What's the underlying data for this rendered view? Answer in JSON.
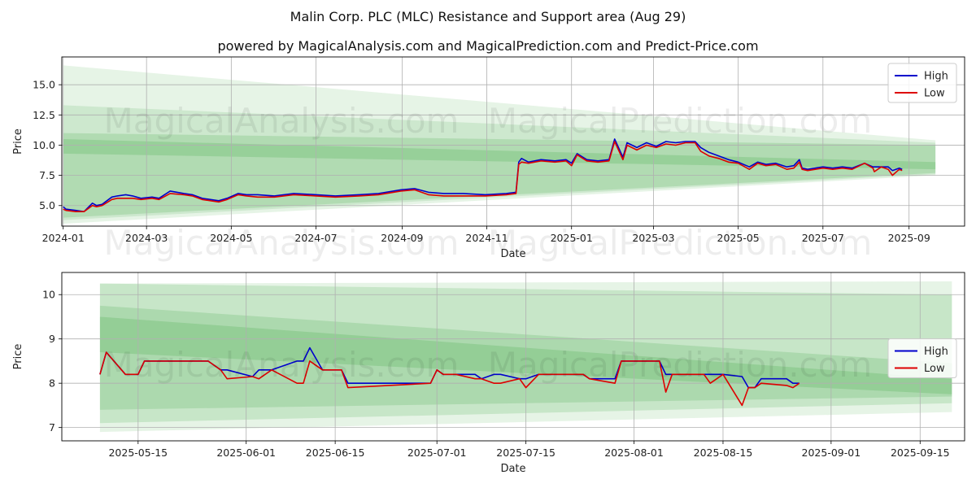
{
  "title": "Malin Corp. PLC (MLC) Resistance and Support area (Aug 29)",
  "subtitle": "powered by MagicalAnalysis.com and MagicalPrediction.com and Predict-Price.com",
  "watermarks": [
    "MagicalAnalysis.com",
    "MagicalPrediction.com"
  ],
  "colors": {
    "high": "#0000cc",
    "low": "#dd0000",
    "band": "#4caf50",
    "grid": "#b0b0b0"
  },
  "chart_data": [
    {
      "type": "line",
      "xlabel": "Date",
      "ylabel": "Price",
      "xlim": [
        "2023-12-31",
        "2025-10-11"
      ],
      "ylim": [
        3.3,
        17.3
      ],
      "xticks": [
        "2024-01-01",
        "2024-03-01",
        "2024-05-01",
        "2024-07-01",
        "2024-09-01",
        "2024-11-01",
        "2025-01-01",
        "2025-03-01",
        "2025-05-01",
        "2025-07-01",
        "2025-09-01"
      ],
      "xtick_labels": [
        "2024-01",
        "2024-03",
        "2024-05",
        "2024-07",
        "2024-09",
        "2024-11",
        "2025-01",
        "2025-03",
        "2025-05",
        "2025-07",
        "2025-09"
      ],
      "yticks": [
        5.0,
        7.5,
        10.0,
        12.5,
        15.0
      ],
      "ytick_labels": [
        "5.0",
        "7.5",
        "10.0",
        "12.5",
        "15.0"
      ],
      "grid": true,
      "legend": "top-right",
      "bands": [
        {
          "x": [
            "2024-01-01",
            "2025-09-20"
          ],
          "upper": [
            16.6,
            10.4
          ],
          "lower": [
            3.5,
            7.5
          ],
          "opacity": 0.14
        },
        {
          "x": [
            "2024-01-01",
            "2025-09-20"
          ],
          "upper": [
            13.3,
            10.2
          ],
          "lower": [
            3.8,
            7.6
          ],
          "opacity": 0.16
        },
        {
          "x": [
            "2024-01-01",
            "2025-09-20"
          ],
          "upper": [
            11.0,
            10.0
          ],
          "lower": [
            4.0,
            7.7
          ],
          "opacity": 0.22
        },
        {
          "x": [
            "2024-01-01",
            "2025-09-20"
          ],
          "upper": [
            10.5,
            8.6
          ],
          "lower": [
            9.3,
            8.0
          ],
          "opacity": 0.25
        }
      ],
      "series": [
        {
          "name": "High",
          "x": [
            "2024-01-01",
            "2024-01-03",
            "2024-01-10",
            "2024-01-16",
            "2024-01-22",
            "2024-01-25",
            "2024-01-29",
            "2024-02-05",
            "2024-02-09",
            "2024-02-15",
            "2024-02-20",
            "2024-02-26",
            "2024-03-05",
            "2024-03-10",
            "2024-03-18",
            "2024-03-28",
            "2024-04-03",
            "2024-04-10",
            "2024-04-16",
            "2024-04-22",
            "2024-04-28",
            "2024-05-06",
            "2024-05-12",
            "2024-05-20",
            "2024-06-01",
            "2024-06-15",
            "2024-07-01",
            "2024-07-15",
            "2024-08-01",
            "2024-08-15",
            "2024-08-31",
            "2024-09-10",
            "2024-09-20",
            "2024-10-01",
            "2024-10-15",
            "2024-10-31",
            "2024-11-15",
            "2024-11-22",
            "2024-11-24",
            "2024-11-26",
            "2024-12-01",
            "2024-12-10",
            "2024-12-20",
            "2024-12-28",
            "2025-01-01",
            "2025-01-05",
            "2025-01-12",
            "2025-01-20",
            "2025-01-28",
            "2025-02-01",
            "2025-02-07",
            "2025-02-10",
            "2025-02-17",
            "2025-02-24",
            "2025-03-03",
            "2025-03-10",
            "2025-03-17",
            "2025-03-24",
            "2025-03-31",
            "2025-04-04",
            "2025-04-10",
            "2025-04-17",
            "2025-04-24",
            "2025-05-01",
            "2025-05-09",
            "2025-05-15",
            "2025-05-21",
            "2025-05-28",
            "2025-06-05",
            "2025-06-10",
            "2025-06-14",
            "2025-06-16",
            "2025-06-20",
            "2025-07-01",
            "2025-07-08",
            "2025-07-15",
            "2025-07-22",
            "2025-07-31",
            "2025-08-06",
            "2025-08-07",
            "2025-08-12",
            "2025-08-17",
            "2025-08-20",
            "2025-08-25",
            "2025-08-27"
          ],
          "y": [
            4.9,
            4.7,
            4.6,
            4.5,
            5.2,
            5.0,
            5.1,
            5.7,
            5.8,
            5.9,
            5.8,
            5.6,
            5.7,
            5.6,
            6.2,
            6.0,
            5.9,
            5.6,
            5.5,
            5.4,
            5.6,
            6.0,
            5.9,
            5.9,
            5.8,
            6.0,
            5.9,
            5.8,
            5.9,
            6.0,
            6.3,
            6.4,
            6.1,
            6.0,
            6.0,
            5.9,
            6.0,
            6.1,
            8.6,
            8.9,
            8.6,
            8.8,
            8.7,
            8.8,
            8.5,
            9.3,
            8.8,
            8.7,
            8.8,
            10.5,
            9.0,
            10.2,
            9.8,
            10.2,
            9.9,
            10.3,
            10.2,
            10.3,
            10.3,
            9.8,
            9.4,
            9.1,
            8.8,
            8.6,
            8.2,
            8.6,
            8.4,
            8.5,
            8.2,
            8.3,
            8.8,
            8.1,
            8.0,
            8.2,
            8.1,
            8.2,
            8.1,
            8.5,
            8.2,
            8.2,
            8.2,
            8.2,
            7.9,
            8.1,
            8.0
          ]
        },
        {
          "name": "Low",
          "x": [
            "2024-01-01",
            "2024-01-03",
            "2024-01-10",
            "2024-01-16",
            "2024-01-22",
            "2024-01-25",
            "2024-01-29",
            "2024-02-05",
            "2024-02-09",
            "2024-02-15",
            "2024-02-20",
            "2024-02-26",
            "2024-03-05",
            "2024-03-10",
            "2024-03-18",
            "2024-03-28",
            "2024-04-03",
            "2024-04-10",
            "2024-04-16",
            "2024-04-22",
            "2024-04-28",
            "2024-05-06",
            "2024-05-12",
            "2024-05-20",
            "2024-06-01",
            "2024-06-15",
            "2024-07-01",
            "2024-07-15",
            "2024-08-01",
            "2024-08-15",
            "2024-08-31",
            "2024-09-10",
            "2024-09-20",
            "2024-10-01",
            "2024-10-15",
            "2024-10-31",
            "2024-11-15",
            "2024-11-22",
            "2024-11-24",
            "2024-11-26",
            "2024-12-01",
            "2024-12-10",
            "2024-12-20",
            "2024-12-28",
            "2025-01-01",
            "2025-01-05",
            "2025-01-12",
            "2025-01-20",
            "2025-01-28",
            "2025-02-01",
            "2025-02-07",
            "2025-02-10",
            "2025-02-17",
            "2025-02-24",
            "2025-03-03",
            "2025-03-10",
            "2025-03-17",
            "2025-03-24",
            "2025-03-31",
            "2025-04-04",
            "2025-04-10",
            "2025-04-17",
            "2025-04-24",
            "2025-05-01",
            "2025-05-09",
            "2025-05-15",
            "2025-05-21",
            "2025-05-28",
            "2025-06-05",
            "2025-06-10",
            "2025-06-14",
            "2025-06-16",
            "2025-06-20",
            "2025-07-01",
            "2025-07-08",
            "2025-07-15",
            "2025-07-22",
            "2025-07-31",
            "2025-08-06",
            "2025-08-07",
            "2025-08-12",
            "2025-08-17",
            "2025-08-20",
            "2025-08-25",
            "2025-08-27"
          ],
          "y": [
            4.7,
            4.6,
            4.5,
            4.5,
            5.0,
            4.9,
            5.0,
            5.5,
            5.6,
            5.6,
            5.6,
            5.5,
            5.6,
            5.5,
            6.0,
            5.9,
            5.8,
            5.5,
            5.4,
            5.3,
            5.5,
            5.9,
            5.8,
            5.7,
            5.7,
            5.9,
            5.8,
            5.7,
            5.8,
            5.9,
            6.2,
            6.3,
            5.9,
            5.8,
            5.8,
            5.8,
            5.9,
            6.0,
            8.4,
            8.6,
            8.5,
            8.7,
            8.6,
            8.7,
            8.3,
            9.2,
            8.7,
            8.6,
            8.7,
            10.3,
            8.8,
            10.0,
            9.6,
            10.0,
            9.8,
            10.1,
            10.0,
            10.2,
            10.2,
            9.5,
            9.1,
            8.9,
            8.6,
            8.5,
            8.0,
            8.5,
            8.3,
            8.4,
            8.0,
            8.1,
            8.6,
            8.0,
            7.9,
            8.1,
            8.0,
            8.1,
            8.0,
            8.5,
            8.1,
            7.8,
            8.2,
            8.0,
            7.5,
            8.0,
            7.9
          ]
        }
      ]
    },
    {
      "type": "line",
      "xlabel": "Date",
      "ylabel": "Price",
      "xlim": [
        "2025-05-03",
        "2025-09-22"
      ],
      "ylim": [
        6.7,
        10.5
      ],
      "xticks": [
        "2025-05-15",
        "2025-06-01",
        "2025-06-15",
        "2025-07-01",
        "2025-07-15",
        "2025-08-01",
        "2025-08-15",
        "2025-09-01",
        "2025-09-15"
      ],
      "xtick_labels": [
        "2025-05-15",
        "2025-06-01",
        "2025-06-15",
        "2025-07-01",
        "2025-07-15",
        "2025-08-01",
        "2025-08-15",
        "2025-09-01",
        "2025-09-15"
      ],
      "yticks": [
        7,
        8,
        9,
        10
      ],
      "ytick_labels": [
        "7",
        "8",
        "9",
        "10"
      ],
      "grid": true,
      "legend": "center-right",
      "bands": [
        {
          "x": [
            "2025-05-09",
            "2025-09-20"
          ],
          "upper": [
            10.25,
            10.3
          ],
          "lower": [
            6.9,
            7.35
          ],
          "opacity": 0.14
        },
        {
          "x": [
            "2025-05-09",
            "2025-09-20"
          ],
          "upper": [
            10.25,
            10.0
          ],
          "lower": [
            7.1,
            7.55
          ],
          "opacity": 0.2
        },
        {
          "x": [
            "2025-05-09",
            "2025-09-20"
          ],
          "upper": [
            9.75,
            8.45
          ],
          "lower": [
            7.4,
            7.7
          ],
          "opacity": 0.22
        },
        {
          "x": [
            "2025-05-09",
            "2025-09-20"
          ],
          "upper": [
            9.5,
            8.1
          ],
          "lower": [
            8.7,
            7.75
          ],
          "opacity": 0.25
        }
      ],
      "series": [
        {
          "name": "High",
          "x": [
            "2025-05-09",
            "2025-05-10",
            "2025-05-13",
            "2025-05-15",
            "2025-05-16",
            "2025-05-26",
            "2025-05-28",
            "2025-05-29",
            "2025-06-02",
            "2025-06-03",
            "2025-06-05",
            "2025-06-09",
            "2025-06-10",
            "2025-06-11",
            "2025-06-13",
            "2025-06-15",
            "2025-06-16",
            "2025-06-17",
            "2025-06-30",
            "2025-07-01",
            "2025-07-02",
            "2025-07-04",
            "2025-07-07",
            "2025-07-08",
            "2025-07-10",
            "2025-07-11",
            "2025-07-14",
            "2025-07-15",
            "2025-07-17",
            "2025-07-24",
            "2025-07-25",
            "2025-07-29",
            "2025-07-30",
            "2025-08-05",
            "2025-08-06",
            "2025-08-07",
            "2025-08-08",
            "2025-08-12",
            "2025-08-13",
            "2025-08-15",
            "2025-08-18",
            "2025-08-19",
            "2025-08-20",
            "2025-08-21",
            "2025-08-25",
            "2025-08-26",
            "2025-08-27"
          ],
          "y": [
            8.2,
            8.7,
            8.2,
            8.2,
            8.5,
            8.5,
            8.3,
            8.3,
            8.15,
            8.3,
            8.3,
            8.5,
            8.5,
            8.8,
            8.3,
            8.3,
            8.3,
            8.0,
            8.0,
            8.3,
            8.2,
            8.2,
            8.2,
            8.1,
            8.2,
            8.2,
            8.1,
            8.1,
            8.2,
            8.2,
            8.1,
            8.1,
            8.5,
            8.5,
            8.2,
            8.2,
            8.2,
            8.2,
            8.2,
            8.2,
            8.15,
            7.9,
            7.9,
            8.1,
            8.1,
            8.0,
            8.0
          ]
        },
        {
          "name": "Low",
          "x": [
            "2025-05-09",
            "2025-05-10",
            "2025-05-13",
            "2025-05-15",
            "2025-05-16",
            "2025-05-26",
            "2025-05-28",
            "2025-05-29",
            "2025-06-02",
            "2025-06-03",
            "2025-06-05",
            "2025-06-09",
            "2025-06-10",
            "2025-06-11",
            "2025-06-13",
            "2025-06-15",
            "2025-06-16",
            "2025-06-17",
            "2025-06-30",
            "2025-07-01",
            "2025-07-02",
            "2025-07-04",
            "2025-07-07",
            "2025-07-08",
            "2025-07-10",
            "2025-07-11",
            "2025-07-14",
            "2025-07-15",
            "2025-07-17",
            "2025-07-24",
            "2025-07-25",
            "2025-07-29",
            "2025-07-30",
            "2025-08-05",
            "2025-08-06",
            "2025-08-07",
            "2025-08-08",
            "2025-08-12",
            "2025-08-13",
            "2025-08-15",
            "2025-08-18",
            "2025-08-19",
            "2025-08-20",
            "2025-08-21",
            "2025-08-25",
            "2025-08-26",
            "2025-08-27"
          ],
          "y": [
            8.2,
            8.7,
            8.2,
            8.2,
            8.5,
            8.5,
            8.3,
            8.1,
            8.15,
            8.1,
            8.3,
            8.0,
            8.0,
            8.5,
            8.3,
            8.3,
            8.3,
            7.9,
            8.0,
            8.3,
            8.2,
            8.2,
            8.1,
            8.1,
            8.0,
            8.0,
            8.1,
            7.9,
            8.2,
            8.2,
            8.1,
            8.0,
            8.5,
            8.5,
            7.8,
            8.2,
            8.2,
            8.2,
            8.0,
            8.2,
            7.5,
            7.9,
            7.9,
            8.0,
            7.95,
            7.9,
            8.0
          ]
        }
      ]
    }
  ]
}
